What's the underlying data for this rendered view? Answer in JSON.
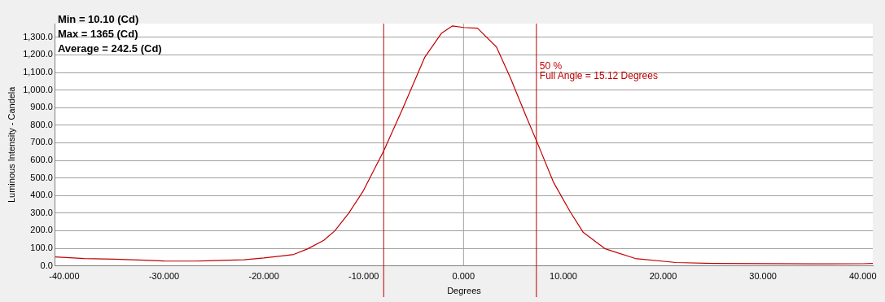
{
  "chart_data": {
    "type": "line",
    "xlabel": "Degrees",
    "ylabel": "Luminous Intensity - Candela",
    "xlim": [
      -40.9,
      41
    ],
    "ylim": [
      0,
      1378
    ],
    "xticks": [
      {
        "value": -40,
        "label": "-40.000"
      },
      {
        "value": -30,
        "label": "-30.000"
      },
      {
        "value": -20,
        "label": "-20.000"
      },
      {
        "value": -10,
        "label": "-10.000"
      },
      {
        "value": 0,
        "label": "0.000"
      },
      {
        "value": 10,
        "label": "10.000"
      },
      {
        "value": 20,
        "label": "20.000"
      },
      {
        "value": 30,
        "label": "30.000"
      },
      {
        "value": 40,
        "label": "40.000"
      }
    ],
    "yticks": [
      {
        "value": 0,
        "label": "0.0"
      },
      {
        "value": 100,
        "label": "100.0"
      },
      {
        "value": 200,
        "label": "200.0"
      },
      {
        "value": 300,
        "label": "300.0"
      },
      {
        "value": 400,
        "label": "400.0"
      },
      {
        "value": 500,
        "label": "500.0"
      },
      {
        "value": 600,
        "label": "600.0"
      },
      {
        "value": 700,
        "label": "700.0"
      },
      {
        "value": 800,
        "label": "800.0"
      },
      {
        "value": 900,
        "label": "900.0"
      },
      {
        "value": 1000,
        "label": "1,000.0"
      },
      {
        "value": 1100,
        "label": "1,100.0"
      },
      {
        "value": 1200,
        "label": "1,200.0"
      },
      {
        "value": 1300,
        "label": "1,300.0"
      }
    ],
    "grid": "y",
    "marker": "none",
    "line_style": "solid",
    "x": [
      -40.9,
      -38,
      -35,
      -32,
      -30,
      -27,
      -25,
      -22,
      -20,
      -18,
      -17,
      -15.6,
      -14,
      -12.9,
      -11.5,
      -10.1,
      -8,
      -6,
      -3.9,
      -2.2,
      -1.1,
      0,
      1.4,
      3.3,
      4.7,
      6.3,
      7.4,
      9,
      10.7,
      12,
      14.2,
      17.2,
      21.3,
      25,
      30,
      35,
      40,
      41
    ],
    "series": [
      {
        "color": "#c00000",
        "values": [
          51,
          42,
          38,
          32,
          28,
          27,
          30,
          35,
          45,
          58,
          65,
          97,
          145,
          199,
          300,
          421,
          653,
          907,
          1185,
          1324,
          1365,
          1356,
          1352,
          1245,
          1069,
          847,
          699,
          477,
          306,
          190,
          97,
          42,
          19,
          14,
          13,
          11,
          12,
          14
        ]
      }
    ],
    "ref_lines": [
      {
        "axis": "x",
        "value": 0,
        "color": "#a0a0a0"
      },
      {
        "axis": "x",
        "value": -8,
        "color": "#c00000"
      },
      {
        "axis": "x",
        "value": 7.3,
        "color": "#c00000"
      }
    ],
    "annotations": [
      "Min = 10.10 (Cd)",
      "Max = 1365 (Cd)",
      "Average = 242.5 (Cd)",
      {
        "text": "50 %",
        "x": 7.3,
        "y": 1135
      },
      {
        "text": "Full Angle = 15.12 Degrees",
        "x": 7.3,
        "y": 1080
      }
    ]
  }
}
